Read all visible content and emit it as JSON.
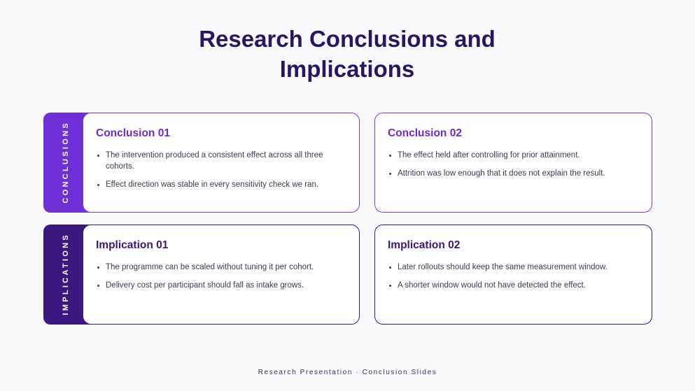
{
  "title": "Research Conclusions and Implications",
  "rows": [
    {
      "label": "CONCLUSIONS",
      "cards": [
        {
          "title": "Conclusion 01",
          "bullets": [
            "The intervention produced a consistent effect across all three cohorts.",
            "Effect direction was stable in every sensitivity check we ran."
          ]
        },
        {
          "title": "Conclusion 02",
          "bullets": [
            "The effect held after controlling for prior attainment.",
            "Attrition was low enough that it does not explain the result."
          ]
        }
      ]
    },
    {
      "label": "IMPLICATIONS",
      "cards": [
        {
          "title": "Implication 01",
          "bullets": [
            "The programme can be scaled without tuning it per cohort.",
            "Delivery cost per participant should fall as intake grows."
          ]
        },
        {
          "title": "Implication 02",
          "bullets": [
            "Later rollouts should keep the same measurement window.",
            "A shorter window would not have detected the effect."
          ]
        }
      ]
    }
  ],
  "footer": "Research Presentation · Conclusion Slides"
}
